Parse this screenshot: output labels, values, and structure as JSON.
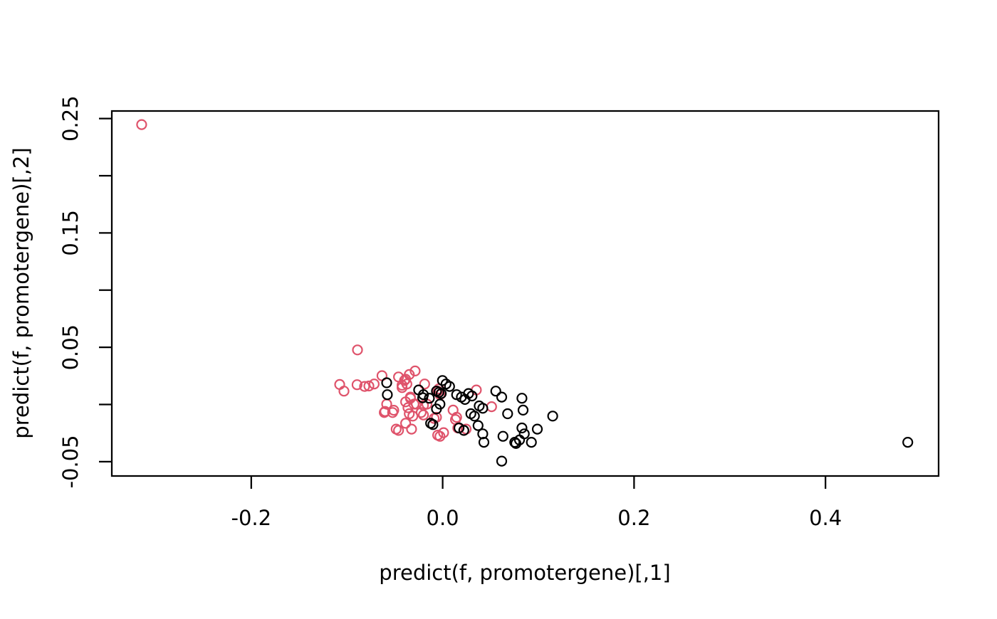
{
  "chart_data": {
    "type": "scatter",
    "title": "",
    "xlabel": "predict(f, promotergene)[,1]",
    "ylabel": "predict(f, promotergene)[,2]",
    "xlim": [
      -0.3457,
      0.5182
    ],
    "ylim": [
      -0.0625,
      0.2566
    ],
    "grid": false,
    "legend": "none",
    "marker": "open-circle",
    "x_ticks": {
      "values": [
        -0.2,
        0.0,
        0.2,
        0.4
      ],
      "labels": [
        "-0.2",
        "0.0",
        "0.2",
        "0.4"
      ]
    },
    "y_ticks": {
      "values": [
        -0.05,
        0.0,
        0.05,
        0.1,
        0.15,
        0.2,
        0.25
      ],
      "labels": [
        "-0.05",
        "",
        "0.05",
        "",
        "0.15",
        "",
        "0.25"
      ]
    },
    "series": [
      {
        "name": "class-red",
        "color": "#DF536B",
        "points": [
          [
            -0.3145,
            0.2447
          ],
          [
            -0.089,
            0.0477
          ],
          [
            -0.1076,
            0.0175
          ],
          [
            -0.1031,
            0.0117
          ],
          [
            -0.0894,
            0.0173
          ],
          [
            -0.0816,
            0.0158
          ],
          [
            -0.0771,
            0.0162
          ],
          [
            -0.0716,
            0.0179
          ],
          [
            -0.0634,
            0.0252
          ],
          [
            -0.0461,
            0.0241
          ],
          [
            -0.0424,
            0.0148
          ],
          [
            -0.0387,
            0.0221
          ],
          [
            -0.0288,
            0.0293
          ],
          [
            -0.0349,
            0.0262
          ],
          [
            -0.0399,
            0.021
          ],
          [
            -0.0374,
            0.0179
          ],
          [
            -0.0188,
            0.0179
          ],
          [
            -0.0424,
            0.0169
          ],
          [
            -0.0337,
            0.0065
          ],
          [
            -0.0387,
            0.0023
          ],
          [
            -0.0275,
            0.0003
          ],
          [
            -0.0201,
            -0.0008
          ],
          [
            -0.0349,
            -0.0081
          ],
          [
            -0.0312,
            -0.0101
          ],
          [
            -0.0387,
            -0.0164
          ],
          [
            -0.0325,
            -0.0215
          ],
          [
            -0.0461,
            -0.0226
          ],
          [
            -0.0602,
            -0.006
          ],
          [
            -0.0511,
            -0.005
          ],
          [
            -0.0486,
            -0.0215
          ],
          [
            -0.0052,
            0.0117
          ],
          [
            -0.0028,
            0.0086
          ],
          [
            -0.0065,
            -0.0112
          ],
          [
            -0.0052,
            -0.0268
          ],
          [
            0.001,
            -0.0246
          ],
          [
            0.0109,
            -0.0049
          ],
          [
            0.0146,
            -0.0112
          ],
          [
            0.0352,
            0.0127
          ],
          [
            0.0511,
            -0.0019
          ],
          [
            0.0245,
            -0.0215
          ],
          [
            -0.0028,
            -0.0278
          ],
          [
            -0.0201,
            -0.0091
          ],
          [
            -0.0089,
            -0.0122
          ],
          [
            -0.0164,
            0.0003
          ],
          [
            -0.0225,
            -0.007
          ],
          [
            -0.03,
            0.0003
          ],
          [
            -0.0039,
            0.0137
          ],
          [
            0.0134,
            -0.0132
          ],
          [
            0.0158,
            -0.0205
          ],
          [
            -0.0337,
            0.0055
          ],
          [
            -0.0362,
            -0.0028
          ],
          [
            -0.0585,
            0.0003
          ],
          [
            -0.061,
            -0.007
          ],
          [
            -0.0523,
            -0.007
          ]
        ]
      },
      {
        "name": "class-black",
        "color": "#000000",
        "points": [
          [
            0.486,
            -0.033
          ],
          [
            -0.0585,
            0.019
          ],
          [
            -0.0578,
            0.0086
          ],
          [
            -0.0201,
            0.0086
          ],
          [
            -0.0002,
            0.021
          ],
          [
            0.0035,
            0.0179
          ],
          [
            0.0072,
            0.0158
          ],
          [
            -0.0065,
            0.0117
          ],
          [
            -0.0039,
            0.0106
          ],
          [
            -0.0015,
            0.0096
          ],
          [
            -0.0139,
            0.0055
          ],
          [
            -0.0028,
            0.0003
          ],
          [
            -0.0126,
            -0.0164
          ],
          [
            -0.0102,
            -0.0175
          ],
          [
            0.0146,
            0.0086
          ],
          [
            0.0196,
            0.0065
          ],
          [
            0.0233,
            0.0044
          ],
          [
            0.027,
            0.0096
          ],
          [
            0.0307,
            0.0075
          ],
          [
            0.0171,
            -0.0205
          ],
          [
            0.0221,
            -0.0226
          ],
          [
            0.0295,
            -0.0081
          ],
          [
            0.0332,
            -0.0101
          ],
          [
            0.037,
            -0.0184
          ],
          [
            0.0555,
            0.0117
          ],
          [
            0.0617,
            0.0065
          ],
          [
            0.0828,
            0.0055
          ],
          [
            0.084,
            -0.0049
          ],
          [
            0.0679,
            -0.0081
          ],
          [
            0.115,
            -0.0101
          ],
          [
            0.0828,
            -0.0205
          ],
          [
            0.0853,
            -0.0257
          ],
          [
            0.0989,
            -0.0215
          ],
          [
            0.063,
            -0.0278
          ],
          [
            0.0766,
            -0.0341
          ],
          [
            0.0803,
            -0.031
          ],
          [
            0.0927,
            -0.033
          ],
          [
            0.0617,
            -0.0495
          ],
          [
            0.0419,
            -0.0257
          ],
          [
            0.0431,
            -0.033
          ],
          [
            -0.0251,
            0.0127
          ],
          [
            -0.0208,
            0.0059
          ],
          [
            -0.0065,
            -0.0039
          ],
          [
            0.0382,
            -0.0012
          ],
          [
            0.0419,
            -0.0033
          ],
          [
            0.0753,
            -0.033
          ]
        ]
      }
    ]
  }
}
